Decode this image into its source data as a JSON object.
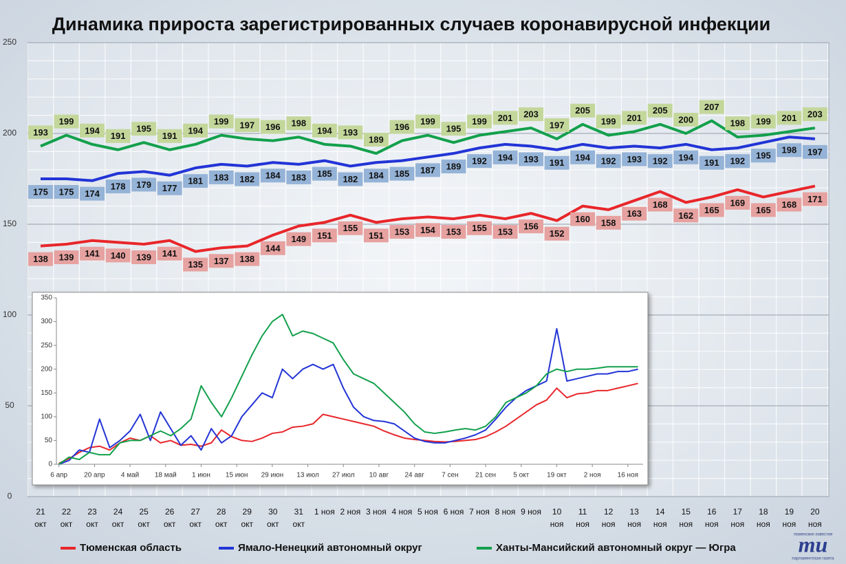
{
  "chart_data": [
    {
      "type": "line",
      "title": "Динамика прироста зарегистрированных случаев коронавирусной инфекции",
      "categories": [
        "21 окт",
        "22 окт",
        "23 окт",
        "24 окт",
        "25 окт",
        "26 окт",
        "27 окт",
        "28 окт",
        "29 окт",
        "30 окт",
        "31 окт",
        "1 ноя",
        "2 ноя",
        "3 ноя",
        "4 ноя",
        "5 ноя",
        "6 ноя",
        "7 ноя",
        "8 ноя",
        "9 ноя",
        "10 ноя",
        "11 ноя",
        "12 ноя",
        "13 ноя",
        "14 ноя",
        "15 ноя",
        "16 ноя",
        "17 ноя",
        "18 ноя",
        "19 ноя",
        "20 ноя"
      ],
      "series": [
        {
          "name": "Тюменская область",
          "color": "#e8262a",
          "label_color": "#e6a2a0",
          "label_position": "below",
          "values": [
            138,
            139,
            141,
            140,
            139,
            141,
            135,
            137,
            138,
            144,
            149,
            151,
            155,
            151,
            153,
            154,
            153,
            155,
            153,
            156,
            152,
            160,
            158,
            163,
            168,
            162,
            165,
            169,
            165,
            168,
            171
          ]
        },
        {
          "name": "Ямало-Ненецкий автономный округ",
          "color": "#2234d6",
          "label_color": "#95b3d7",
          "label_position": "below",
          "values": [
            175,
            175,
            174,
            178,
            179,
            177,
            181,
            183,
            182,
            184,
            183,
            185,
            182,
            184,
            185,
            187,
            189,
            192,
            194,
            193,
            191,
            194,
            192,
            193,
            192,
            194,
            191,
            192,
            195,
            198,
            197
          ]
        },
        {
          "name": "Ханты-Мансийский автономный округ — Югра",
          "color": "#12a04c",
          "label_color": "#c4d79b",
          "label_position": "above",
          "values": [
            193,
            199,
            194,
            191,
            195,
            191,
            194,
            199,
            197,
            196,
            198,
            194,
            193,
            189,
            196,
            199,
            195,
            199,
            201,
            203,
            197,
            205,
            199,
            201,
            205,
            200,
            207,
            198,
            199,
            201,
            203
          ]
        }
      ],
      "ylim": [
        0,
        250
      ],
      "yticks": [
        0,
        50,
        100,
        150,
        200,
        250
      ],
      "grid": true
    },
    {
      "type": "line",
      "x": [
        0,
        4,
        8,
        12,
        16,
        20,
        24,
        28,
        32,
        36,
        40,
        44,
        48,
        52,
        56,
        60,
        64,
        68,
        72,
        76,
        80,
        84,
        88,
        92,
        96,
        100,
        104,
        108,
        112,
        116,
        120,
        124,
        128,
        132,
        136,
        140,
        144,
        148,
        152,
        156,
        160,
        164,
        168,
        172,
        176,
        180,
        184,
        188,
        192,
        196,
        200,
        204,
        208,
        212,
        216,
        220,
        224,
        228
      ],
      "series": [
        {
          "color": "#e8262a",
          "values": [
            2,
            12,
            25,
            35,
            38,
            30,
            45,
            55,
            50,
            60,
            45,
            50,
            40,
            42,
            38,
            45,
            72,
            58,
            50,
            48,
            55,
            65,
            68,
            78,
            80,
            85,
            105,
            100,
            95,
            90,
            85,
            80,
            70,
            62,
            55,
            52,
            50,
            48,
            47,
            48,
            50,
            52,
            58,
            68,
            80,
            95,
            110,
            125,
            135,
            160,
            140,
            148,
            150,
            155,
            155,
            160,
            165,
            170
          ]
        },
        {
          "color": "#2234d6",
          "values": [
            0,
            8,
            30,
            25,
            95,
            35,
            50,
            70,
            105,
            50,
            110,
            75,
            40,
            60,
            30,
            75,
            45,
            60,
            100,
            125,
            150,
            140,
            200,
            180,
            200,
            210,
            200,
            210,
            160,
            120,
            100,
            92,
            90,
            85,
            70,
            55,
            48,
            45,
            45,
            50,
            55,
            62,
            72,
            95,
            120,
            140,
            155,
            165,
            175,
            285,
            175,
            180,
            185,
            190,
            190,
            195,
            195,
            200
          ]
        },
        {
          "color": "#12a04c",
          "values": [
            0,
            15,
            10,
            25,
            20,
            20,
            45,
            50,
            50,
            60,
            70,
            60,
            75,
            95,
            165,
            130,
            100,
            140,
            185,
            230,
            270,
            300,
            315,
            270,
            280,
            275,
            265,
            255,
            220,
            190,
            180,
            170,
            150,
            130,
            110,
            85,
            68,
            65,
            68,
            72,
            75,
            72,
            80,
            100,
            130,
            140,
            150,
            165,
            190,
            200,
            195,
            200,
            200,
            202,
            205,
            205,
            205,
            205
          ]
        }
      ],
      "xlim": [
        -1,
        230
      ],
      "xticks": [
        {
          "value": 0,
          "label": "6 апр"
        },
        {
          "value": 14,
          "label": "20 апр"
        },
        {
          "value": 28,
          "label": "4 май"
        },
        {
          "value": 42,
          "label": "18 май"
        },
        {
          "value": 56,
          "label": "1 июн"
        },
        {
          "value": 70,
          "label": "15 июн"
        },
        {
          "value": 84,
          "label": "29 июн"
        },
        {
          "value": 98,
          "label": "13 июл"
        },
        {
          "value": 112,
          "label": "27 июл"
        },
        {
          "value": 126,
          "label": "10 авг"
        },
        {
          "value": 140,
          "label": "24 авг"
        },
        {
          "value": 154,
          "label": "7 сен"
        },
        {
          "value": 168,
          "label": "21 сен"
        },
        {
          "value": 182,
          "label": "5 окт"
        },
        {
          "value": 196,
          "label": "19 окт"
        },
        {
          "value": 210,
          "label": "2 ноя"
        },
        {
          "value": 224,
          "label": "16 ноя"
        }
      ],
      "ylim": [
        0,
        350
      ],
      "yticks": [
        0,
        50,
        100,
        150,
        200,
        250,
        300,
        350
      ]
    }
  ],
  "logo": {
    "text": "mu",
    "top": "тюменские известия",
    "bottom": "парламентская газета"
  }
}
